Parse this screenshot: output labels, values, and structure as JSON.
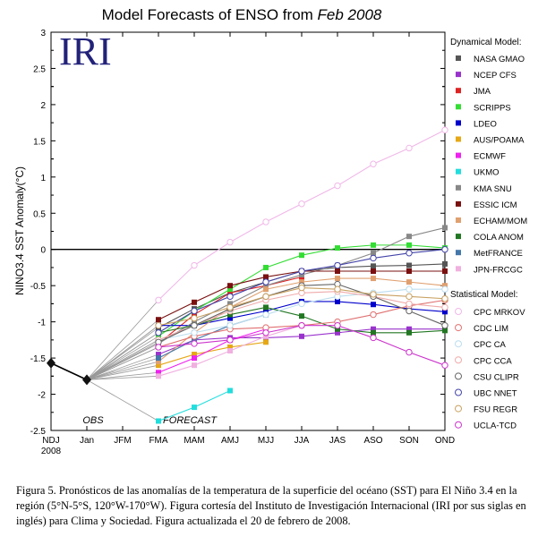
{
  "chart_data": {
    "type": "line",
    "title_main": "Model Forecasts of ENSO from ",
    "title_italic": "Feb 2008",
    "logo_text": "IRI",
    "ylabel": "NINO3.4 SST Anomaly(°C)",
    "ylim": [
      -2.5,
      3
    ],
    "yticks": [
      "-2.5",
      "-2",
      "-1.5",
      "-1",
      "-0.5",
      "0",
      "0.5",
      "1",
      "1.5",
      "2",
      "2.5",
      "3"
    ],
    "categories": [
      "NDJ",
      "Jan",
      "JFM",
      "FMA",
      "MAM",
      "AMJ",
      "MJJ",
      "JJA",
      "JAS",
      "ASO",
      "SON",
      "OND"
    ],
    "year_label": "2008",
    "obs_label": "OBS",
    "forecast_label": "FORECAST",
    "obs_values": [
      -1.57,
      -1.8
    ],
    "dynamical_title": "Dynamical Model:",
    "statistical_title": "Statistical Model:",
    "dynamical": [
      {
        "name": "NASA GMAO",
        "color": "#555555",
        "marker": "square",
        "values": [
          -1.08,
          -0.82,
          -0.6,
          -0.45,
          -0.3,
          -0.25,
          -0.23,
          -0.22,
          -0.2
        ]
      },
      {
        "name": "NCEP CFS",
        "color": "#9933cc",
        "marker": "square",
        "values": [
          -1.45,
          -1.25,
          -1.22,
          -1.22,
          -1.2,
          -1.15,
          -1.1,
          -1.1,
          -1.1
        ]
      },
      {
        "name": "JMA",
        "color": "#dd2222",
        "marker": "square",
        "values": [
          -1.3,
          -0.9,
          -0.6,
          -0.5,
          -0.38
        ]
      },
      {
        "name": "SCRIPPS",
        "color": "#33dd33",
        "marker": "square",
        "values": [
          -1.2,
          -0.85,
          -0.55,
          -0.25,
          -0.08,
          0.02,
          0.06,
          0.06,
          0.02
        ]
      },
      {
        "name": "LDEO",
        "color": "#0000cc",
        "marker": "square",
        "values": [
          -1.05,
          -1.05,
          -0.95,
          -0.85,
          -0.72,
          -0.72,
          -0.76,
          -0.82,
          -0.86
        ]
      },
      {
        "name": "AUS/POAMA",
        "color": "#e6a817",
        "marker": "square",
        "values": [
          -1.6,
          -1.45,
          -1.35,
          -1.28
        ]
      },
      {
        "name": "ECMWF",
        "color": "#ee22ee",
        "marker": "square",
        "values": [
          -1.7,
          -1.5,
          -1.25,
          -1.1
        ]
      },
      {
        "name": "UKMO",
        "color": "#22dddd",
        "marker": "square",
        "values": [
          -2.37,
          -2.18,
          -1.95
        ]
      },
      {
        "name": "KMA SNU",
        "color": "#888888",
        "marker": "square",
        "values": [
          -1.3,
          -1.0,
          -0.75,
          -0.5,
          -0.35,
          -0.22,
          -0.05,
          0.18,
          0.3
        ]
      },
      {
        "name": "ESSIC ICM",
        "color": "#7a1010",
        "marker": "square",
        "values": [
          -0.97,
          -0.73,
          -0.5,
          -0.38,
          -0.3,
          -0.3,
          -0.3,
          -0.3,
          -0.3
        ]
      },
      {
        "name": "ECHAM/MOM",
        "color": "#e0a070",
        "marker": "square",
        "values": [
          -1.55,
          -1.15,
          -0.8,
          -0.55,
          -0.45,
          -0.4,
          -0.4,
          -0.45,
          -0.5
        ]
      },
      {
        "name": "COLA ANOM",
        "color": "#227722",
        "marker": "square",
        "values": [
          -1.15,
          -1.05,
          -0.9,
          -0.8,
          -0.92,
          -1.1,
          -1.15,
          -1.15,
          -1.12
        ]
      },
      {
        "name": "MetFRANCE",
        "color": "#4477aa",
        "marker": "square",
        "values": [
          -1.5,
          -1.25,
          -1.05,
          -0.9
        ]
      },
      {
        "name": "JPN-FRCGC",
        "color": "#f0b0e0",
        "marker": "square",
        "values": [
          -1.75,
          -1.6,
          -1.4,
          -1.2,
          -1.05
        ]
      }
    ],
    "statistical": [
      {
        "name": "CPC MRKOV",
        "color": "#f0b8e8",
        "marker": "circle",
        "values": [
          -0.7,
          -0.22,
          0.1,
          0.38,
          0.63,
          0.88,
          1.18,
          1.4,
          1.65
        ]
      },
      {
        "name": "CDC LIM",
        "color": "#e07070",
        "marker": "circle",
        "values": [
          -1.35,
          -1.2,
          -1.1,
          -1.08,
          -1.05,
          -1.0,
          -0.9,
          -0.78,
          -0.7
        ]
      },
      {
        "name": "CPC CA",
        "color": "#bbddee",
        "marker": "circle",
        "values": [
          -1.25,
          -1.15,
          -1.05,
          -0.9,
          -0.75,
          -0.65,
          -0.6,
          -0.55,
          -0.55
        ]
      },
      {
        "name": "CPC CCA",
        "color": "#f0aaaa",
        "marker": "circle",
        "values": [
          -1.25,
          -1.05,
          -0.85,
          -0.7,
          -0.6,
          -0.58,
          -0.65,
          -0.75,
          -0.8
        ]
      },
      {
        "name": "CSU CLIPR",
        "color": "#666666",
        "marker": "circle",
        "values": [
          -1.28,
          -1.05,
          -0.82,
          -0.65,
          -0.5,
          -0.48,
          -0.65,
          -0.85,
          -1.05
        ]
      },
      {
        "name": "UBC NNET",
        "color": "#4444aa",
        "marker": "circle",
        "values": [
          -1.15,
          -0.85,
          -0.65,
          -0.45,
          -0.3,
          -0.22,
          -0.12,
          -0.05,
          0.0
        ]
      },
      {
        "name": "FSU REGR",
        "color": "#c8a060",
        "marker": "circle",
        "values": [
          -1.05,
          -0.95,
          -0.8,
          -0.65,
          -0.53,
          -0.55,
          -0.62,
          -0.65,
          -0.68
        ]
      },
      {
        "name": "UCLA-TCD",
        "color": "#cc33cc",
        "marker": "circle",
        "values": [
          -1.35,
          -1.3,
          -1.25,
          -1.15,
          -1.05,
          -1.05,
          -1.22,
          -1.42,
          -1.6
        ]
      }
    ]
  },
  "caption": "Figura 5. Pronósticos de las anomalías de la temperatura de la superficie del océano (SST) para El Niño 3.4 en la región (5°N-5°S, 120°W-170°W). Figura cortesía del Instituto de Investigación Internacional (IRI por sus siglas en inglés) para Clima y Sociedad. Figura actualizada el 20 de febrero de 2008."
}
